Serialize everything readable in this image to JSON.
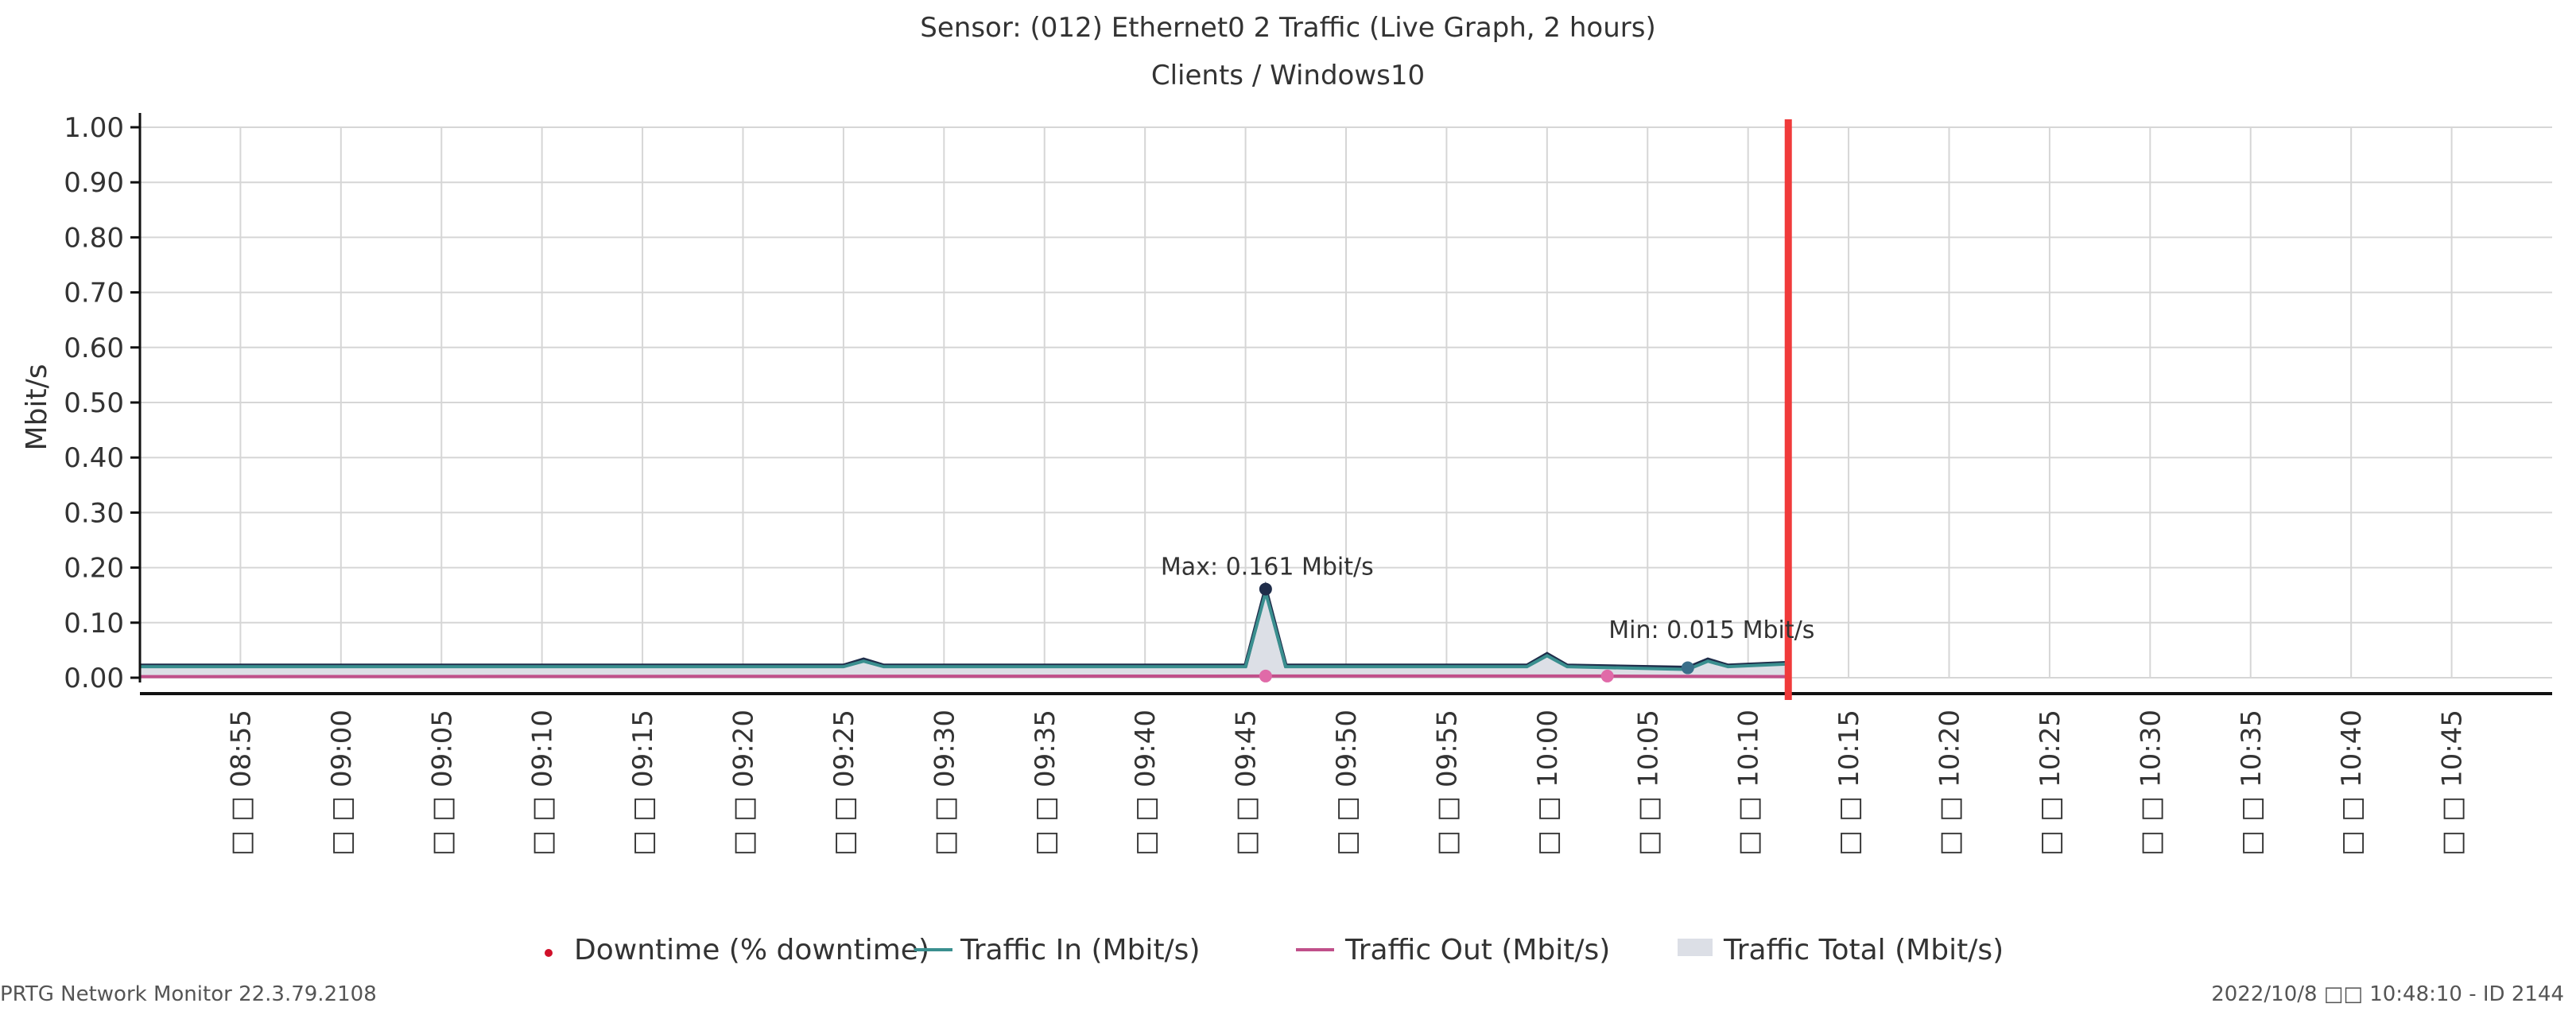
{
  "chart_data": {
    "type": "area",
    "title": "Sensor: (012) Ethernet0 2 Traffic (Live Graph, 2 hours)",
    "subtitle": "Clients / Windows10",
    "ylabel": "Mbit/s",
    "ylim": [
      0,
      1.0
    ],
    "yticks": [
      "1.00",
      "0.90",
      "0.80",
      "0.70",
      "0.60",
      "0.50",
      "0.40",
      "0.30",
      "0.20",
      "0.10",
      "0.00"
    ],
    "xlim": [
      "08:50",
      "10:50"
    ],
    "xtick_labels": [
      "08:55",
      "09:00",
      "09:05",
      "09:10",
      "09:15",
      "09:20",
      "09:25",
      "09:30",
      "09:35",
      "09:40",
      "09:45",
      "09:50",
      "09:55",
      "10:00",
      "10:05",
      "10:10",
      "10:15",
      "10:20",
      "10:25",
      "10:30",
      "10:35",
      "10:40",
      "10:45"
    ],
    "xtick_suffix": "□ □",
    "grid": true,
    "legend_position": "bottom",
    "current_time": "10:12",
    "series": [
      {
        "name": "Traffic In (Mbit/s)",
        "color": "#3a8f8f",
        "x": [
          "08:50",
          "09:25",
          "09:26",
          "09:27",
          "09:45",
          "09:46",
          "09:47",
          "09:59",
          "10:00",
          "10:01",
          "10:07",
          "10:08",
          "10:09",
          "10:12"
        ],
        "values": [
          0.02,
          0.02,
          0.03,
          0.02,
          0.02,
          0.155,
          0.02,
          0.02,
          0.04,
          0.02,
          0.015,
          0.03,
          0.02,
          0.025
        ]
      },
      {
        "name": "Traffic Out (Mbit/s)",
        "color": "#c0508a",
        "x": [
          "08:50",
          "09:46",
          "10:03",
          "10:12"
        ],
        "values": [
          0.002,
          0.003,
          0.003,
          0.002
        ]
      },
      {
        "name": "Traffic Total (Mbit/s)",
        "color": "#dcdfe6",
        "x": [
          "08:50",
          "09:25",
          "09:26",
          "09:27",
          "09:45",
          "09:46",
          "09:47",
          "09:59",
          "10:00",
          "10:01",
          "10:07",
          "10:08",
          "10:09",
          "10:12"
        ],
        "values": [
          0.022,
          0.022,
          0.033,
          0.022,
          0.022,
          0.161,
          0.022,
          0.022,
          0.043,
          0.022,
          0.018,
          0.033,
          0.022,
          0.027
        ]
      }
    ],
    "annotations": [
      {
        "text": "Max: 0.161 Mbit/s",
        "x": "09:46",
        "y": 0.161
      },
      {
        "text": "Min: 0.015 Mbit/s",
        "x": "10:07",
        "y": 0.015
      }
    ],
    "legend": [
      {
        "label": "Downtime (% downtime)",
        "color": "#d0102a",
        "marker": "dot"
      },
      {
        "label": "Traffic In (Mbit/s)",
        "color": "#3a8f8f",
        "marker": "line"
      },
      {
        "label": "Traffic Out (Mbit/s)",
        "color": "#c0508a",
        "marker": "line"
      },
      {
        "label": "Traffic Total (Mbit/s)",
        "color": "#dcdfe6",
        "marker": "area"
      }
    ]
  },
  "footer": {
    "left": "PRTG Network Monitor 22.3.79.2108",
    "right": "2022/10/8 □□ 10:48:10 - ID 2144"
  },
  "colors": {
    "current_time_line": "#f03a3a",
    "grid": "#d6d6d6",
    "axis": "#111111"
  }
}
